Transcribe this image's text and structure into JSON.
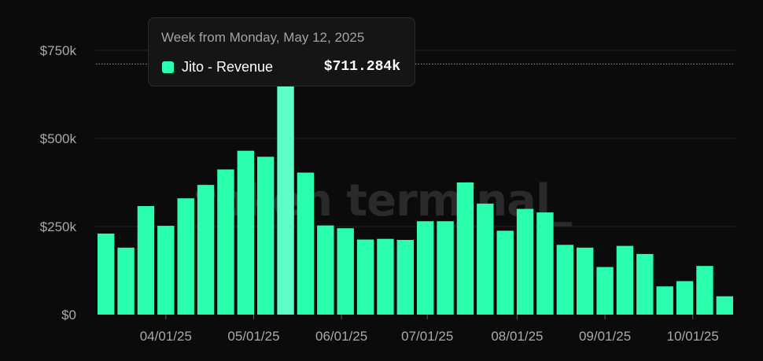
{
  "colors": {
    "background": "#0b0b0b",
    "bar": "#2affb0",
    "bar_highlight": "#5dffc6",
    "grid": "#262626",
    "reference_line": "#9a9a9a",
    "tick_text": "#a9a9a9",
    "watermark": "#2a2a2a"
  },
  "watermark": "token terminal_",
  "tooltip": {
    "title": "Week from Monday, May 12, 2025",
    "series_name": "Jito - Revenue",
    "value_text": "$711.284k",
    "swatch_color": "#2affb0"
  },
  "chart_data": {
    "type": "bar",
    "title": "",
    "xlabel": "",
    "ylabel": "",
    "ylim": [
      0,
      850000
    ],
    "y_ticks": [
      0,
      250000,
      500000,
      750000
    ],
    "y_tick_labels": [
      "$0",
      "$250k",
      "$500k",
      "$750k"
    ],
    "x_tick_labels": [
      "04/01/25",
      "05/01/25",
      "06/01/25",
      "07/01/25",
      "08/01/25",
      "09/01/25",
      "10/01/25"
    ],
    "x_tick_bar_positions": [
      3.5,
      7.9,
      12.3,
      16.6,
      21.1,
      25.5,
      29.9
    ],
    "grid": true,
    "reference_value": 711284,
    "highlight_index": 9,
    "series": [
      {
        "name": "Jito - Revenue",
        "color": "#2affb0",
        "values": [
          230000,
          190000,
          308000,
          252000,
          330000,
          368000,
          412000,
          465000,
          448000,
          711284,
          403000,
          253000,
          245000,
          213000,
          215000,
          212000,
          265000,
          265000,
          375000,
          315000,
          238000,
          300000,
          290000,
          198000,
          190000,
          135000,
          195000,
          172000,
          80000,
          95000,
          138000,
          52000
        ]
      }
    ]
  }
}
